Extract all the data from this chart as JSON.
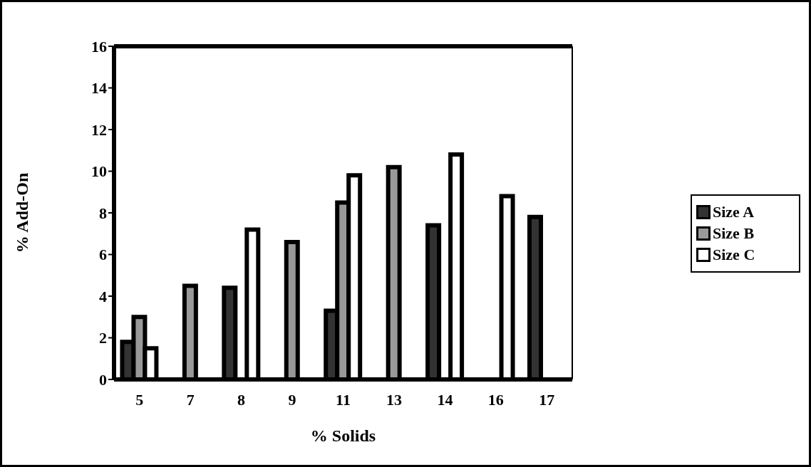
{
  "chart_data": {
    "type": "bar",
    "xlabel": "% Solids",
    "ylabel": "% Add-On",
    "categories": [
      "5",
      "7",
      "8",
      "9",
      "11",
      "13",
      "14",
      "16",
      "17"
    ],
    "series": [
      {
        "name": "Size A",
        "color": "#333333",
        "values": [
          1.8,
          null,
          4.4,
          null,
          3.3,
          null,
          7.4,
          null,
          7.8
        ]
      },
      {
        "name": "Size B",
        "color": "#999999",
        "values": [
          3.0,
          4.5,
          null,
          6.6,
          8.5,
          10.2,
          null,
          null,
          null
        ]
      },
      {
        "name": "Size C",
        "color": "#ffffff",
        "values": [
          1.5,
          null,
          7.2,
          null,
          9.8,
          null,
          10.8,
          8.8,
          null
        ]
      }
    ],
    "ylim": [
      0,
      16
    ],
    "yticks": [
      0,
      2,
      4,
      6,
      8,
      10,
      12,
      14,
      16
    ],
    "grid": false,
    "legend": "right"
  }
}
